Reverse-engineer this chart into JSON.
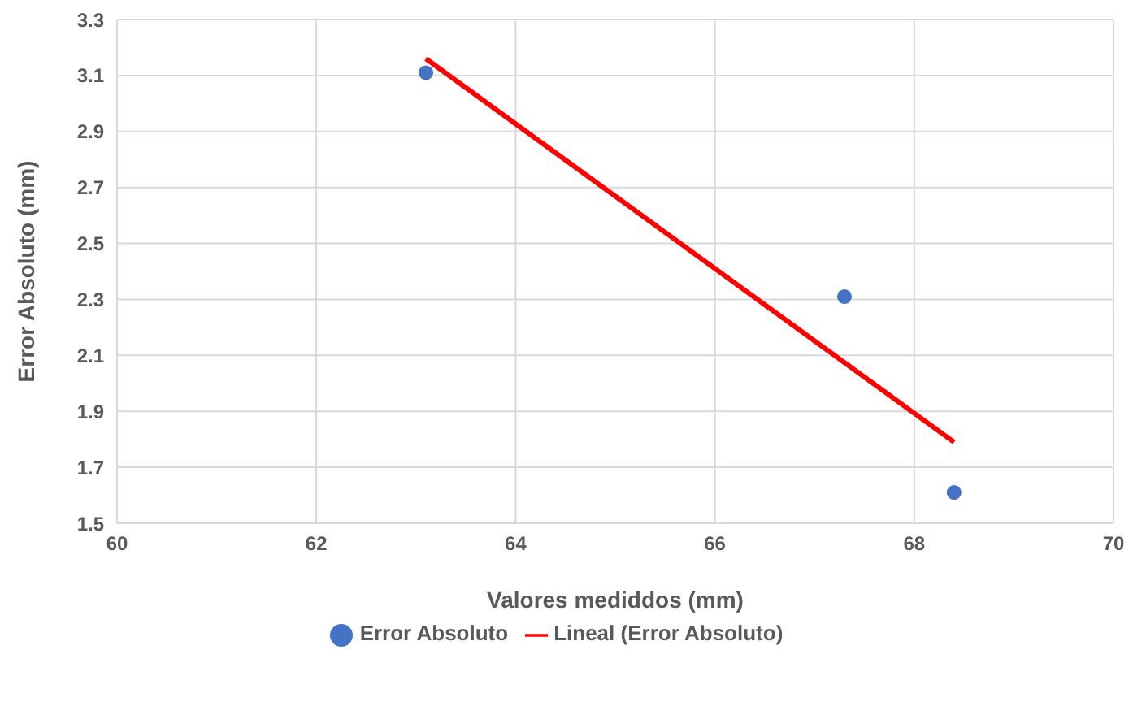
{
  "chart_data": {
    "type": "scatter",
    "xlabel": "Valores mediddos (mm)",
    "ylabel": "Error Absoluto (mm)",
    "xlim": [
      60,
      70
    ],
    "xticks": [
      60,
      62,
      64,
      66,
      68,
      70
    ],
    "ylim": [
      1.5,
      3.3
    ],
    "yticks": [
      1.5,
      1.7,
      1.9,
      2.1,
      2.3,
      2.5,
      2.7,
      2.9,
      3.1,
      3.3
    ],
    "grid": true,
    "legend": "bottom",
    "series": [
      {
        "name": "Error Absoluto",
        "color": "#4472c4",
        "marker": "circle",
        "x": [
          63.1,
          67.3,
          68.4
        ],
        "values": [
          3.11,
          2.31,
          1.61
        ]
      },
      {
        "name": "Lineal (Error Absoluto)",
        "type": "line",
        "color": "#ff0000",
        "marker": "none",
        "x": [
          63.1,
          68.4
        ],
        "values": [
          3.16,
          1.79
        ]
      }
    ]
  }
}
